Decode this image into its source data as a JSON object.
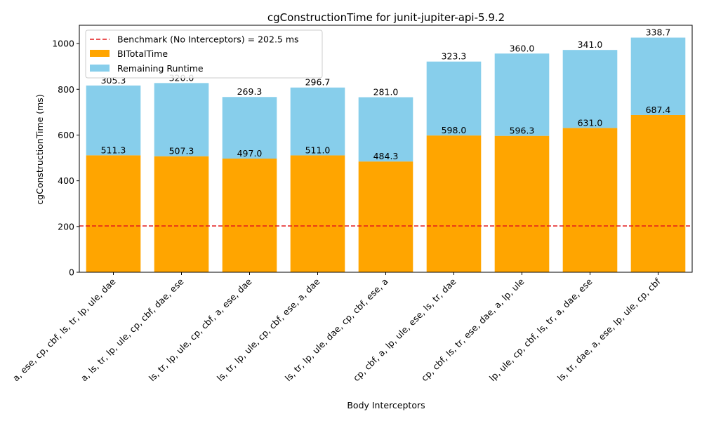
{
  "chart_data": {
    "type": "bar",
    "stacked": true,
    "title": "cgConstructionTime for junit-jupiter-api-5.9.2",
    "xlabel": "Body Interceptors",
    "ylabel": "cgConstructionTime (ms)",
    "ylim": [
      0,
      1080
    ],
    "yticks": [
      "0",
      "200",
      "400",
      "600",
      "800",
      "1000"
    ],
    "grid": false,
    "legend_position": "top-left",
    "categories": [
      "a, ese, cp, cbf, ls, tr, lp, ule, dae",
      "a, ls, tr, lp, ule, cp, cbf, dae, ese",
      "ls, tr, lp, ule, cp, cbf, a, ese, dae",
      "ls, tr, lp, ule, cp, cbf, ese, a, dae",
      "ls, tr, lp, ule, dae, cp, cbf, ese, a",
      "cp, cbf, a, lp, ule, ese, ls, tr, dae",
      "cp, cbf, ls, tr, ese, dae, a, lp, ule",
      "lp, ule, cp, cbf, ls, tr, a, dae, ese",
      "ls, tr, dae, a, ese, lp, ule, cp, cbf"
    ],
    "series": [
      {
        "name": "BITotalTime",
        "color": "#ffa500",
        "values": [
          511.3,
          507.3,
          497.0,
          511.0,
          484.3,
          598.0,
          596.3,
          631.0,
          687.4
        ],
        "labels": [
          "511.3",
          "507.3",
          "497.0",
          "511.0",
          "484.3",
          "598.0",
          "596.3",
          "631.0",
          "687.4"
        ]
      },
      {
        "name": "Remaining Runtime",
        "color": "#87ceeb",
        "values": [
          305.3,
          320.0,
          269.3,
          296.7,
          281.0,
          323.3,
          360.0,
          341.0,
          338.7
        ],
        "labels": [
          "305.3",
          "320.0",
          "269.3",
          "296.7",
          "281.0",
          "323.3",
          "360.0",
          "341.0",
          "338.7"
        ]
      }
    ],
    "reference_line": {
      "value": 202.5,
      "label": "Benchmark (No Interceptors) = 202.5 ms",
      "color": "#e41a1c"
    }
  }
}
